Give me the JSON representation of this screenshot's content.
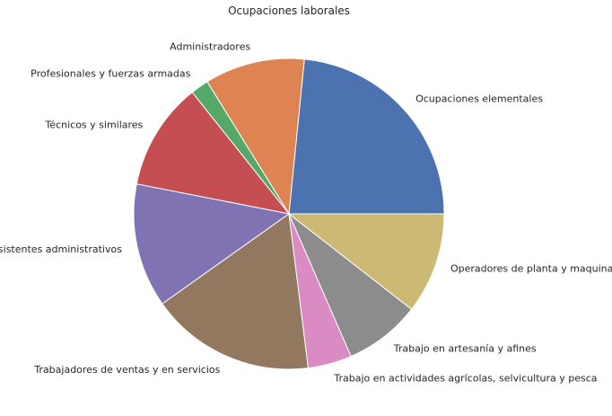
{
  "chart_data": {
    "type": "pie",
    "title": "Ocupaciones laborales",
    "categories": [
      "Ocupaciones elementales",
      "Administradores",
      "Profesionales y fuerzas armadas",
      "Técnicos y similares",
      "Asistentes administrativos",
      "Trabajadores de ventas y en servicios",
      "Trabajo en actividades agrícolas, selvicultura y pesca",
      "Trabajo en artesanía y afines",
      "Operadores de planta y maquinaria"
    ],
    "values": [
      23.6,
      10.5,
      1.9,
      11.3,
      13.0,
      17.3,
      4.6,
      8.0,
      10.6
    ],
    "colors": [
      "#4c72b0",
      "#dd8452",
      "#55a868",
      "#c44e52",
      "#8172b3",
      "#937860",
      "#da8bc3",
      "#8c8c8c",
      "#ccb974"
    ],
    "start_angle": 0,
    "direction": "counterclockwise"
  }
}
